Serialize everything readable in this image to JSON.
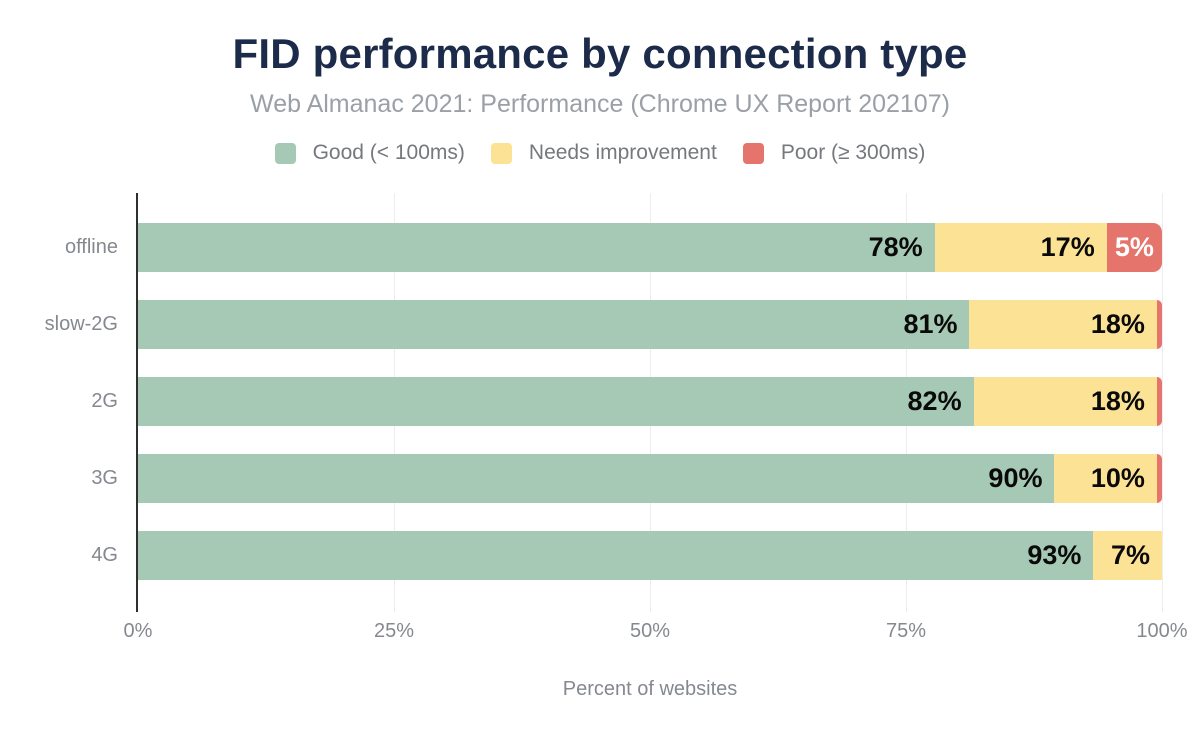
{
  "header": {
    "title": "FID performance by connection type",
    "subtitle": "Web Almanac 2021: Performance (Chrome UX Report 202107)"
  },
  "chart_data": {
    "type": "bar",
    "orientation": "horizontal",
    "stacked": true,
    "title": "FID performance by connection type",
    "subtitle": "Web Almanac 2021: Performance (Chrome UX Report 202107)",
    "xlabel": "Percent of websites",
    "ylabel": "",
    "xlim": [
      0,
      100
    ],
    "x_ticks": [
      {
        "label": "0%",
        "value": 0
      },
      {
        "label": "25%",
        "value": 25
      },
      {
        "label": "50%",
        "value": 50
      },
      {
        "label": "75%",
        "value": 75
      },
      {
        "label": "100%",
        "value": 100
      }
    ],
    "grid": "vertical gridlines at 25/50/75/100, drawn behind bars",
    "legend_position": "top-center",
    "categories": [
      "offline",
      "slow-2G",
      "2G",
      "3G",
      "4G"
    ],
    "series": [
      {
        "name": "Good (< 100ms)",
        "color": "#a6c9b6",
        "values": [
          78,
          81,
          82,
          90,
          93
        ]
      },
      {
        "name": "Needs improvement",
        "color": "#fce294",
        "values": [
          17,
          18,
          18,
          10,
          7
        ]
      },
      {
        "name": "Poor (≥ 300ms)",
        "color": "#e5756c",
        "values": [
          5,
          1,
          0,
          0,
          0
        ]
      }
    ],
    "bar_labels": [
      [
        "78%",
        "17%",
        "5%"
      ],
      [
        "81%",
        "18%",
        ""
      ],
      [
        "82%",
        "18%",
        ""
      ],
      [
        "90%",
        "10%",
        ""
      ],
      [
        "93%",
        "7%",
        ""
      ]
    ],
    "segment_widths_pct": [
      [
        77.8,
        16.8,
        5.4
      ],
      [
        81.2,
        18.3,
        0.5
      ],
      [
        81.6,
        17.9,
        0.5
      ],
      [
        89.5,
        10.0,
        0.5
      ],
      [
        93.3,
        6.7,
        0.0
      ]
    ]
  },
  "colors": {
    "background": "#ffffff",
    "title": "#1c2b4a",
    "subtitle": "#9aa0a6",
    "legend_text": "#75787d",
    "axis_text": "#85898f",
    "axis_line": "#2f2f2f",
    "gridline": "#ebedef",
    "good": "#a6c9b6",
    "needs_improvement": "#fce294",
    "poor": "#e5756c",
    "bar_label": "#0a0a0a",
    "bar_label_on_poor": "#ffffff"
  }
}
